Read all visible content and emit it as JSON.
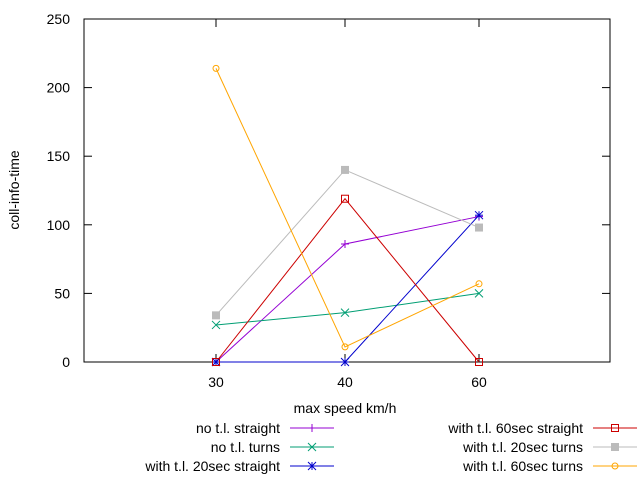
{
  "chart_data": {
    "type": "line",
    "xlabel": "max speed km/h",
    "ylabel": "coll-info-time",
    "categories": [
      "30",
      "40",
      "60"
    ],
    "ylim": [
      0,
      250
    ],
    "yticks": [
      0,
      50,
      100,
      150,
      200,
      250
    ],
    "grid": false,
    "legend_placement": "bottom-outside",
    "series": [
      {
        "name": "no t.l. straight",
        "values": [
          0,
          86,
          106
        ],
        "color": "#9400d3",
        "marker": "plus"
      },
      {
        "name": "no t.l. turns",
        "values": [
          27,
          36,
          50
        ],
        "color": "#009e73",
        "marker": "cross"
      },
      {
        "name": "with t.l. 20sec straight",
        "values": [
          0,
          0,
          107
        ],
        "color": "#0000cd",
        "marker": "star"
      },
      {
        "name": "with t.l. 60sec straight",
        "values": [
          0,
          119,
          0
        ],
        "color": "#cc0000",
        "marker": "open-square"
      },
      {
        "name": "with t.l. 20sec turns",
        "values": [
          34,
          140,
          98
        ],
        "color": "#bbbbbb",
        "marker": "filled-square"
      },
      {
        "name": "with t.l. 60sec turns",
        "values": [
          214,
          11,
          57
        ],
        "color": "#ffa500",
        "marker": "open-circle"
      }
    ]
  }
}
